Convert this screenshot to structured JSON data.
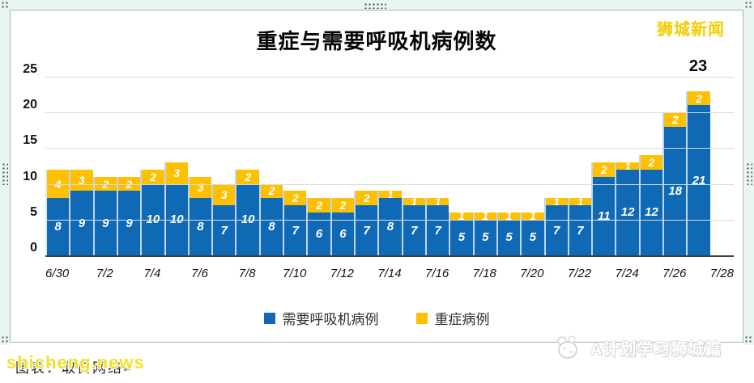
{
  "window": {
    "brand": "狮城新闻"
  },
  "chart_data": {
    "type": "bar",
    "stacked": true,
    "title": "重症与需要呼吸机病例数",
    "categories": [
      "6/30",
      "7/1",
      "7/2",
      "7/3",
      "7/4",
      "7/5",
      "7/6",
      "7/7",
      "7/8",
      "7/9",
      "7/10",
      "7/11",
      "7/12",
      "7/13",
      "7/14",
      "7/15",
      "7/16",
      "7/17",
      "7/18",
      "7/19",
      "7/20",
      "7/21",
      "7/22",
      "7/23",
      "7/24",
      "7/25",
      "7/26",
      "7/27"
    ],
    "x_axis_slots": 29,
    "x_tick_labels": [
      "6/30",
      "7/2",
      "7/4",
      "7/6",
      "7/8",
      "7/10",
      "7/12",
      "7/14",
      "7/16",
      "7/18",
      "7/20",
      "7/22",
      "7/24",
      "7/26",
      "7/28"
    ],
    "series": [
      {
        "name": "需要呼吸机病例",
        "color": "#1069b4",
        "values": [
          8,
          9,
          9,
          9,
          10,
          10,
          8,
          7,
          10,
          8,
          7,
          6,
          6,
          7,
          8,
          7,
          7,
          5,
          5,
          5,
          5,
          7,
          7,
          11,
          12,
          12,
          18,
          21
        ]
      },
      {
        "name": "重症病例",
        "color": "#fdc003",
        "values": [
          4,
          3,
          2,
          2,
          2,
          3,
          3,
          3,
          2,
          2,
          2,
          2,
          2,
          2,
          1,
          1,
          1,
          1,
          1,
          1,
          1,
          1,
          1,
          2,
          1,
          2,
          2,
          2
        ]
      }
    ],
    "ylim": [
      0,
      25
    ],
    "yticks": [
      0,
      5,
      10,
      15,
      20,
      25
    ],
    "grid": true,
    "legend_position": "bottom",
    "annotation": {
      "text": "23",
      "bar_index": 27
    }
  },
  "watermarks": {
    "caption": "图表：取自网络",
    "caption_mark": "↵",
    "site": "shicheng.news",
    "channel": "A计划学习狮城篇"
  },
  "colors": {
    "bar_blue": "#1069b4",
    "bar_yellow": "#fdc003",
    "bar_gap": "#bdd7ee",
    "brand_yellow": "#f2cf0e",
    "site_yellow": "#f2e226"
  }
}
